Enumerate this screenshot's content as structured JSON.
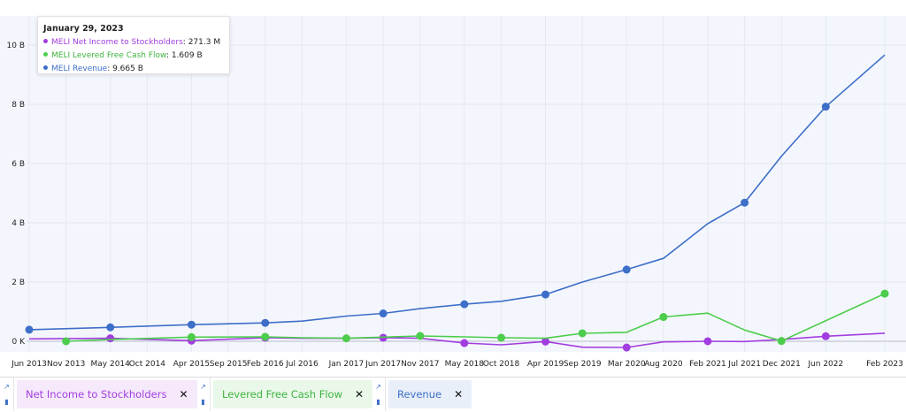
{
  "chart_data": {
    "type": "line",
    "title": "",
    "xlabel": "",
    "ylabel": "",
    "ylim": [
      0,
      10.8
    ],
    "x": [
      "2013-06",
      "2013-11",
      "2014-05",
      "2014-10",
      "2015-04",
      "2015-09",
      "2016-02",
      "2016-07",
      "2017-01",
      "2017-06",
      "2017-11",
      "2018-05",
      "2018-10",
      "2019-04",
      "2019-09",
      "2020-03",
      "2020-08",
      "2021-02",
      "2021-07",
      "2021-12",
      "2022-06",
      "2023-02"
    ],
    "x_tick_labels": [
      "Jun 2013",
      "Nov 2013",
      "May 2014",
      "Oct 2014",
      "Apr 2015",
      "Sep 2015",
      "Feb 2016",
      "Jul 2016",
      "Jan 2017",
      "Jun 2017",
      "Nov 2017",
      "May 2018",
      "Oct 2018",
      "Apr 2019",
      "Sep 2019",
      "Mar 2020",
      "Aug 2020",
      "Feb 2021",
      "Jul 2021",
      "Dec 2021",
      "Jun 2022",
      "Feb 2023"
    ],
    "y_ticks": [
      0,
      2,
      4,
      6,
      8,
      10
    ],
    "y_tick_labels": [
      "0 K",
      "2 B",
      "4 B",
      "6 B",
      "8 B",
      "10 B"
    ],
    "grid": true,
    "legend": "bottom",
    "series": [
      {
        "name": "Net Income to Stockholders",
        "color": "#a23ee0",
        "points": [
          [
            "2013-06",
            0.08
          ],
          [
            "2014-05",
            0.1
          ],
          [
            "2015-04",
            0.02
          ],
          [
            "2016-02",
            0.12
          ],
          [
            "2016-07",
            0.1
          ],
          [
            "2017-01",
            0.1
          ],
          [
            "2017-06",
            0.12
          ],
          [
            "2017-11",
            0.1
          ],
          [
            "2018-05",
            -0.06
          ],
          [
            "2018-10",
            -0.12
          ],
          [
            "2019-04",
            -0.01
          ],
          [
            "2019-09",
            -0.2
          ],
          [
            "2020-03",
            -0.21
          ],
          [
            "2020-08",
            -0.02
          ],
          [
            "2021-02",
            0.0
          ],
          [
            "2021-07",
            -0.01
          ],
          [
            "2021-12",
            0.06
          ],
          [
            "2022-06",
            0.17
          ],
          [
            "2023-02",
            0.2713
          ]
        ],
        "markers": [
          [
            "2014-05",
            0.1
          ],
          [
            "2015-04",
            0.02
          ],
          [
            "2016-02",
            0.12
          ],
          [
            "2017-06",
            0.12
          ],
          [
            "2018-05",
            -0.06
          ],
          [
            "2019-04",
            -0.01
          ],
          [
            "2020-03",
            -0.21
          ],
          [
            "2021-02",
            0.0
          ],
          [
            "2022-06",
            0.17
          ]
        ]
      },
      {
        "name": "Levered Free Cash Flow",
        "color": "#4ccd4c",
        "points": [
          [
            "2013-11",
            0.0
          ],
          [
            "2014-05",
            0.06
          ],
          [
            "2015-04",
            0.14
          ],
          [
            "2016-02",
            0.15
          ],
          [
            "2016-07",
            0.12
          ],
          [
            "2017-01",
            0.1
          ],
          [
            "2017-06",
            0.14
          ],
          [
            "2017-11",
            0.18
          ],
          [
            "2018-05",
            0.15
          ],
          [
            "2018-10",
            0.12
          ],
          [
            "2019-04",
            0.1
          ],
          [
            "2019-09",
            0.27
          ],
          [
            "2020-03",
            0.3
          ],
          [
            "2020-08",
            0.82
          ],
          [
            "2021-02",
            0.95
          ],
          [
            "2021-07",
            0.38
          ],
          [
            "2021-12",
            0.01
          ],
          [
            "2023-02",
            1.609
          ]
        ],
        "markers": [
          [
            "2013-11",
            0.0
          ],
          [
            "2015-04",
            0.14
          ],
          [
            "2016-02",
            0.15
          ],
          [
            "2017-01",
            0.1
          ],
          [
            "2017-11",
            0.18
          ],
          [
            "2018-10",
            0.12
          ],
          [
            "2019-09",
            0.27
          ],
          [
            "2020-08",
            0.82
          ],
          [
            "2021-12",
            0.01
          ],
          [
            "2023-02",
            1.609
          ]
        ]
      },
      {
        "name": "Revenue",
        "color": "#3d6fc8",
        "points": [
          [
            "2013-06",
            0.39
          ],
          [
            "2014-05",
            0.47
          ],
          [
            "2015-04",
            0.56
          ],
          [
            "2016-02",
            0.62
          ],
          [
            "2016-07",
            0.68
          ],
          [
            "2017-01",
            0.85
          ],
          [
            "2017-06",
            0.94
          ],
          [
            "2017-11",
            1.1
          ],
          [
            "2018-05",
            1.25
          ],
          [
            "2018-10",
            1.35
          ],
          [
            "2019-04",
            1.58
          ],
          [
            "2019-09",
            2.0
          ],
          [
            "2020-03",
            2.42
          ],
          [
            "2020-08",
            2.8
          ],
          [
            "2021-02",
            3.97
          ],
          [
            "2021-07",
            4.68
          ],
          [
            "2021-12",
            6.25
          ],
          [
            "2022-06",
            7.92
          ],
          [
            "2023-02",
            9.665
          ]
        ],
        "markers": [
          [
            "2013-06",
            0.39
          ],
          [
            "2014-05",
            0.47
          ],
          [
            "2015-04",
            0.56
          ],
          [
            "2016-02",
            0.62
          ],
          [
            "2017-06",
            0.94
          ],
          [
            "2018-05",
            1.25
          ],
          [
            "2019-04",
            1.58
          ],
          [
            "2020-03",
            2.42
          ],
          [
            "2021-07",
            4.68
          ],
          [
            "2022-06",
            7.92
          ]
        ]
      }
    ]
  },
  "tooltip": {
    "date": "January 29, 2023",
    "rows": [
      {
        "label": "MELI Net Income to Stockholders",
        "value": "271.3 M",
        "color": "#a23ee0"
      },
      {
        "label": "MELI Levered Free Cash Flow",
        "value": "1.609 B",
        "color": "#4ccd4c"
      },
      {
        "label": "MELI Revenue",
        "value": "9.665 B",
        "color": "#3d6fc8"
      }
    ]
  },
  "legend_bar": {
    "items": [
      {
        "label": "Net Income to Stockholders",
        "close": "✕",
        "bg": "#f5e9fb",
        "fg": "#a23ee0"
      },
      {
        "label": "Levered Free Cash Flow",
        "close": "✕",
        "bg": "#eaf8ea",
        "fg": "#3fb33f"
      },
      {
        "label": "Revenue",
        "close": "✕",
        "bg": "#e9eff9",
        "fg": "#3d6fc8"
      }
    ],
    "icon_trend": "trend-icon",
    "icon_bars": "bar-chart-icon"
  }
}
